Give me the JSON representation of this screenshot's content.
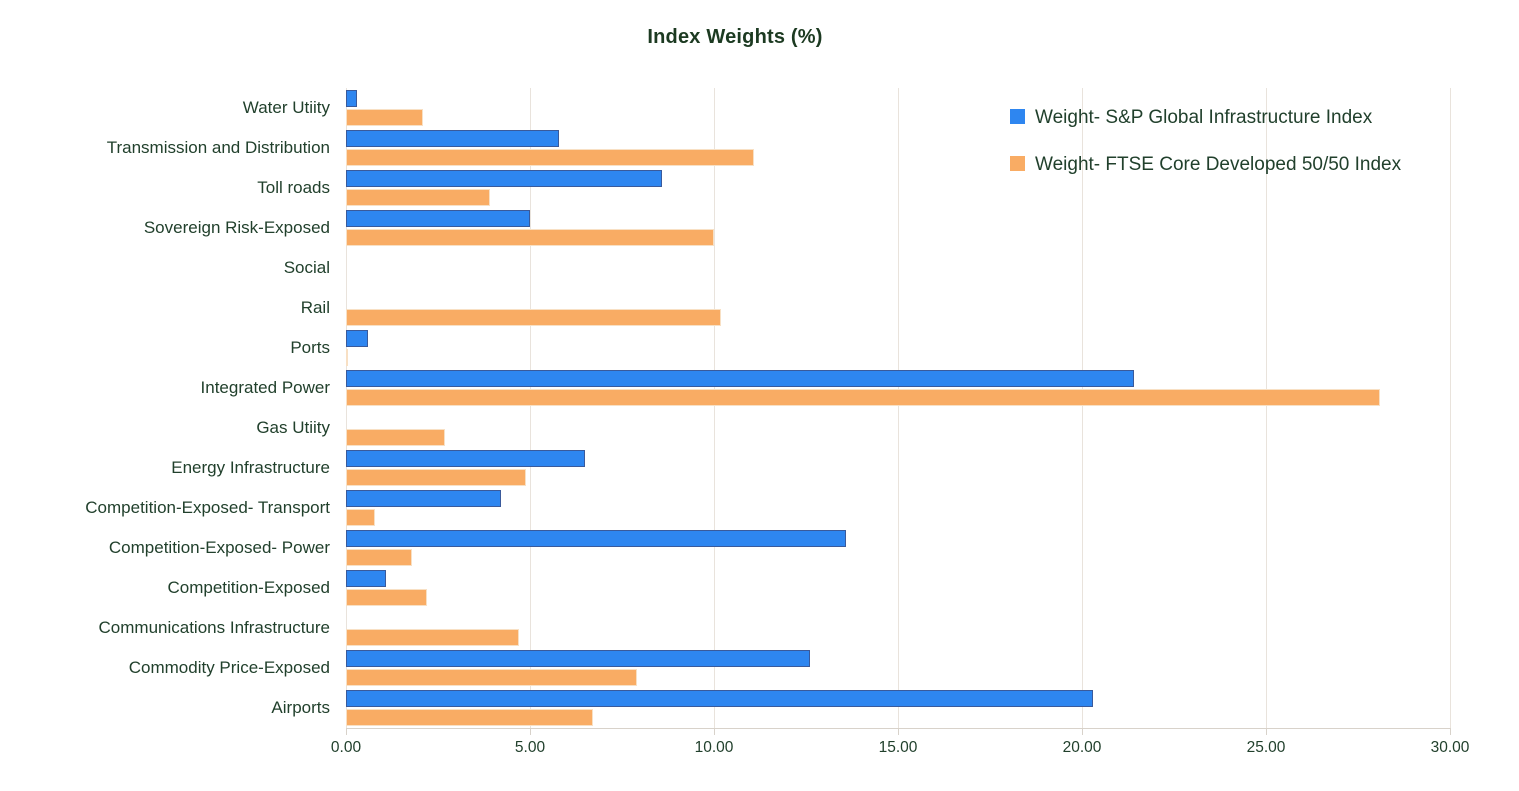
{
  "title": "Index Weights (%)",
  "legend": {
    "position": "top-right",
    "items": [
      {
        "label": "Weight- S&P Global Infrastructure Index",
        "color": "#2e86f0"
      },
      {
        "label": "Weight- FTSE Core Developed 50/50 Index",
        "color": "#f9ac64"
      }
    ]
  },
  "axis": {
    "x_ticks": [
      "0.00",
      "5.00",
      "10.00",
      "15.00",
      "20.00",
      "25.00",
      "30.00"
    ]
  },
  "colors": {
    "series1_fill": "#2e86f0",
    "series1_border": "#3a5a9b",
    "series2_fill": "#f9ac64",
    "series2_border": "#f8e0c4",
    "gridline": "#e9e3dc",
    "text": "#21402c",
    "title_text": "#1c3a21",
    "background": "#ffffff"
  },
  "chart_data": {
    "type": "bar",
    "orientation": "horizontal",
    "title": "Index Weights (%)",
    "xlabel": "",
    "ylabel": "",
    "xlim": [
      0,
      30
    ],
    "grid": true,
    "legend_position": "top-right",
    "categories": [
      "Water Utiity",
      "Transmission and Distribution",
      "Toll roads",
      "Sovereign Risk-Exposed",
      "Social",
      "Rail",
      "Ports",
      "Integrated Power",
      "Gas Utiity",
      "Energy Infrastructure",
      "Competition-Exposed- Transport",
      "Competition-Exposed- Power",
      "Competition-Exposed",
      "Communications Infrastructure",
      "Commodity Price-Exposed",
      "Airports"
    ],
    "series": [
      {
        "name": "Weight- S&P Global Infrastructure Index",
        "color": "#2e86f0",
        "border_color": "#3a5a9b",
        "values": [
          0.3,
          5.8,
          8.6,
          5.0,
          0,
          0,
          0.6,
          21.4,
          0,
          6.5,
          4.2,
          13.6,
          1.1,
          0,
          12.6,
          20.3
        ]
      },
      {
        "name": "Weight- FTSE Core Developed 50/50 Index",
        "color": "#f9ac64",
        "border_color": "#f8e0c4",
        "values": [
          2.1,
          11.1,
          3.9,
          10.0,
          0,
          10.2,
          0.05,
          28.1,
          2.7,
          4.9,
          0.8,
          1.8,
          2.2,
          4.7,
          7.9,
          6.7
        ]
      }
    ],
    "x_ticks_values": [
      0,
      5,
      10,
      15,
      20,
      25,
      30
    ]
  }
}
